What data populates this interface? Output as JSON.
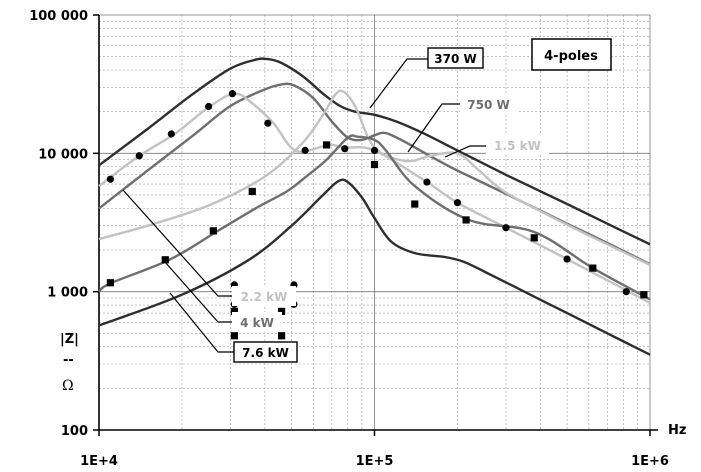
{
  "chart_data": {
    "type": "line",
    "x_scale": "log",
    "y_scale": "log",
    "xlim": [
      10000,
      1000000
    ],
    "ylim": [
      100,
      100000
    ],
    "x_ticks": [
      {
        "value": 10000,
        "label": "1E+4"
      },
      {
        "value": 100000,
        "label": "1E+5"
      },
      {
        "value": 1000000,
        "label": "1E+6"
      }
    ],
    "y_ticks": [
      {
        "value": 100,
        "label": "100"
      },
      {
        "value": 1000,
        "label": "1 000"
      },
      {
        "value": 10000,
        "label": "10 000"
      },
      {
        "value": 100000,
        "label": "100 000"
      }
    ],
    "x_unit": "Hz",
    "y_label": [
      "|Z|",
      "--",
      "Ω"
    ],
    "grid": true,
    "annotation": "4-poles",
    "series": [
      {
        "name": "370 W",
        "color": "#2e2e2e",
        "marker": "none",
        "x": [
          10000,
          15000,
          22000,
          30000,
          37000,
          41000,
          46000,
          55000,
          65000,
          75000,
          85000,
          100000,
          120000,
          150000,
          200000,
          300000,
          500000,
          700000,
          1000000
        ],
        "y": [
          8200,
          15000,
          27000,
          41000,
          47500,
          48000,
          45000,
          36000,
          27000,
          22000,
          20000,
          19000,
          17000,
          14000,
          10500,
          7000,
          4300,
          3100,
          2200
        ]
      },
      {
        "name": "750 W",
        "color": "#6e6e6e",
        "marker": "none",
        "x": [
          10000,
          15000,
          22000,
          30000,
          40000,
          46000,
          51000,
          60000,
          70000,
          80000,
          90000,
          100000,
          110000,
          130000,
          160000,
          200000,
          300000,
          500000,
          700000,
          1000000
        ],
        "y": [
          4000,
          7500,
          13500,
          22000,
          29000,
          31500,
          31000,
          25000,
          17000,
          13000,
          12500,
          13500,
          14000,
          12000,
          9500,
          7500,
          5100,
          3100,
          2250,
          1580
        ]
      },
      {
        "name": "1.5 kW",
        "color": "#c2c2c2",
        "marker": "none",
        "x": [
          10000,
          15000,
          25000,
          40000,
          55000,
          65000,
          72000,
          77000,
          85000,
          100000,
          130000,
          160000,
          200000,
          240000,
          300000,
          500000,
          700000,
          1000000
        ],
        "y": [
          2400,
          3000,
          4200,
          6800,
          12000,
          19000,
          26500,
          28000,
          22000,
          11000,
          8800,
          9600,
          10000,
          7500,
          5200,
          3050,
          2200,
          1560
        ]
      },
      {
        "name": "2.2 kW",
        "color": "#c2c2c2",
        "marker": "dot",
        "x": [
          10000,
          11000,
          14000,
          19000,
          25000,
          31000,
          36000,
          43000,
          52000,
          68000,
          78000,
          100000,
          155000,
          200000,
          300000,
          500000,
          800000,
          1000000
        ],
        "y": [
          5800,
          6700,
          9600,
          14000,
          21500,
          27000,
          23000,
          16500,
          10400,
          11500,
          11000,
          10500,
          6200,
          4400,
          2900,
          1720,
          1050,
          830
        ]
      },
      {
        "name": "4 kW",
        "color": "#6e6e6e",
        "marker": "square",
        "x": [
          10000,
          11000,
          18000,
          27000,
          37000,
          48000,
          56000,
          67000,
          80000,
          87000,
          100000,
          110000,
          140000,
          220000,
          380000,
          620000,
          1000000
        ],
        "y": [
          1000,
          1150,
          1700,
          2750,
          4000,
          5300,
          6700,
          9000,
          13000,
          13200,
          12500,
          10500,
          5800,
          3300,
          2700,
          1480,
          880
        ]
      },
      {
        "name": "7.6 kW",
        "color": "#2e2e2e",
        "marker": "none",
        "x": [
          10000,
          20000,
          35000,
          50000,
          65000,
          74000,
          80000,
          90000,
          100000,
          115000,
          140000,
          180000,
          210000,
          250000,
          350000,
          500000,
          700000,
          1000000
        ],
        "y": [
          570,
          950,
          1700,
          3000,
          5000,
          6300,
          6200,
          4800,
          3400,
          2300,
          1900,
          1780,
          1650,
          1400,
          1000,
          700,
          500,
          350
        ]
      }
    ],
    "marker_points": {
      "dot": {
        "x": [
          11000,
          14000,
          18300,
          25000,
          30500,
          41000,
          56000,
          78000,
          100000,
          155000,
          200000,
          300000,
          500000,
          820000
        ],
        "y": [
          6500,
          9600,
          13800,
          21800,
          27000,
          16500,
          10500,
          10800,
          10500,
          6200,
          4400,
          2900,
          1720,
          1000
        ]
      },
      "square": {
        "x": [
          11000,
          17400,
          26000,
          36000,
          67000,
          100000,
          140000,
          215000,
          380000,
          620000,
          950000
        ],
        "y": [
          1160,
          1700,
          2750,
          5300,
          11500,
          8300,
          4300,
          3300,
          2450,
          1480,
          950
        ]
      }
    },
    "legend_marker_samples": [
      {
        "series": "2.2 kW",
        "marker": "dot",
        "x": [
          31000,
          31000,
          51000,
          51000
        ],
        "y": [
          1120,
          810,
          1120,
          810
        ]
      },
      {
        "series": "4 kW",
        "marker": "square",
        "x": [
          31000,
          31000,
          46000,
          46000
        ],
        "y": [
          720,
          480,
          720,
          480
        ]
      }
    ]
  }
}
